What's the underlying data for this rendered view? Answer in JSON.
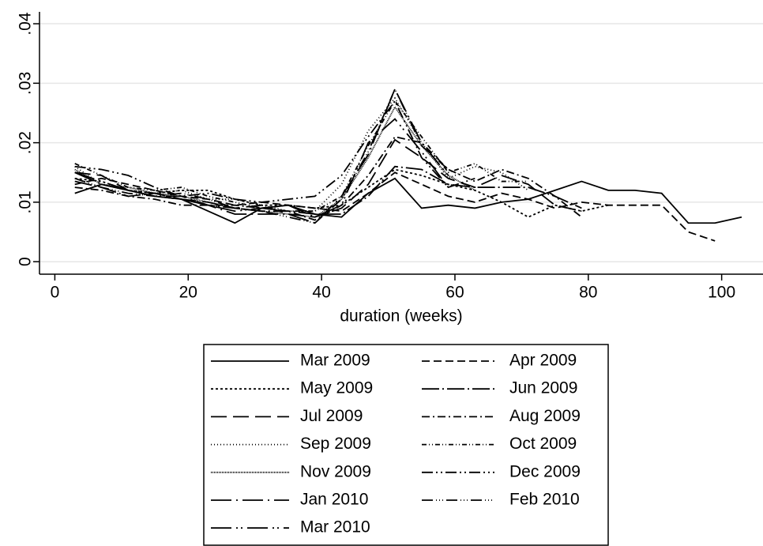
{
  "chart_data": {
    "type": "line",
    "x_label": "duration (weeks)",
    "x": [
      3,
      7,
      11,
      15,
      19,
      23,
      27,
      31,
      35,
      39,
      43,
      47,
      51,
      55,
      59,
      63,
      67,
      71,
      75,
      79,
      83,
      87,
      91,
      95,
      99,
      103
    ],
    "xlim": [
      -2.3,
      106.2
    ],
    "ylim": [
      -0.0021,
      0.042
    ],
    "xticks": [
      0,
      20,
      40,
      60,
      80,
      100
    ],
    "yticks": [
      0,
      {
        "value": 0.01,
        "label": ".01"
      },
      {
        "value": 0.02,
        "label": ".02"
      },
      {
        "value": 0.03,
        "label": ".03"
      },
      {
        "value": 0.04,
        "label": ".04"
      }
    ],
    "grid": true,
    "legend_position": "bottom",
    "series": [
      {
        "name": "Mar 2009",
        "color": "#000000",
        "dash": "none",
        "values": [
          0.0115,
          0.013,
          0.012,
          0.011,
          0.0105,
          0.0085,
          0.0065,
          0.009,
          0.0095,
          0.008,
          0.0075,
          0.0115,
          0.014,
          0.009,
          0.0095,
          0.009,
          0.01,
          0.0105,
          0.012,
          0.0135,
          0.012,
          0.012,
          0.0115,
          0.0065,
          0.0065,
          0.0075
        ]
      },
      {
        "name": "Apr 2009",
        "color": "#000000",
        "dash": "10 5",
        "values": [
          0.013,
          0.014,
          0.013,
          0.012,
          0.011,
          0.0105,
          0.0095,
          0.01,
          0.0095,
          0.009,
          0.0085,
          0.0115,
          0.015,
          0.013,
          0.011,
          0.01,
          0.0115,
          0.0105,
          0.009,
          0.01,
          0.0095,
          0.0095,
          0.0095,
          0.005,
          0.0035,
          null
        ]
      },
      {
        "name": "May 2009",
        "color": "#000000",
        "dash": "3 3",
        "values": [
          0.014,
          0.0135,
          0.012,
          0.0115,
          0.012,
          0.012,
          0.0105,
          0.0095,
          0.0095,
          0.009,
          0.0095,
          0.0125,
          0.0155,
          0.0145,
          0.013,
          0.012,
          0.01,
          0.0075,
          0.0095,
          0.0085,
          0.0095,
          null,
          null,
          null,
          null,
          null
        ]
      },
      {
        "name": "Jun 2009",
        "color": "#000000",
        "dash": "22 4 2 4",
        "values": [
          0.0135,
          0.0125,
          0.011,
          0.0115,
          0.0105,
          0.0095,
          0.009,
          0.0085,
          0.0085,
          0.008,
          0.008,
          0.011,
          0.016,
          0.0155,
          0.013,
          0.0125,
          0.0125,
          0.0125,
          0.011,
          0.009,
          null,
          null,
          null,
          null,
          null,
          null
        ]
      },
      {
        "name": "Jul 2009",
        "color": "#000000",
        "dash": "20 8",
        "values": [
          0.015,
          0.0145,
          0.012,
          0.011,
          0.0105,
          0.01,
          0.009,
          0.0095,
          0.008,
          0.0075,
          0.009,
          0.013,
          0.0205,
          0.0175,
          0.014,
          0.0125,
          0.0145,
          0.013,
          0.0095,
          0.0085,
          null,
          null,
          null,
          null,
          null,
          null
        ]
      },
      {
        "name": "Aug 2009",
        "color": "#000000",
        "dash": "10 4 2 4",
        "values": [
          0.0125,
          0.012,
          0.011,
          0.0105,
          0.0095,
          0.0095,
          0.0095,
          0.009,
          0.0085,
          0.007,
          0.0095,
          0.0145,
          0.021,
          0.02,
          0.0155,
          0.0135,
          0.0155,
          0.014,
          0.011,
          0.0075,
          null,
          null,
          null,
          null,
          null,
          null
        ]
      },
      {
        "name": "Sep 2009",
        "color": "#000000",
        "dash": "1 3",
        "values": [
          0.016,
          0.013,
          0.012,
          0.0115,
          0.012,
          0.0105,
          0.0105,
          0.0095,
          0.0085,
          0.0085,
          0.013,
          0.022,
          0.0275,
          0.02,
          0.014,
          0.016,
          0.015,
          0.012,
          null,
          null,
          null,
          null,
          null,
          null,
          null,
          null
        ]
      },
      {
        "name": "Oct 2009",
        "color": "#000000",
        "dash": "6 3 1 3 1 3",
        "values": [
          0.0165,
          0.0145,
          0.0125,
          0.012,
          0.0125,
          0.011,
          0.01,
          0.009,
          0.0085,
          0.0085,
          0.011,
          0.0195,
          0.027,
          0.021,
          0.015,
          0.0165,
          0.0135,
          0.0135,
          null,
          null,
          null,
          null,
          null,
          null,
          null,
          null
        ]
      },
      {
        "name": "Nov 2009",
        "color": "#000000",
        "dash": "1 1",
        "values": [
          0.0155,
          0.013,
          0.0125,
          0.0115,
          0.011,
          0.01,
          0.009,
          0.0085,
          0.008,
          0.0075,
          0.0105,
          0.0175,
          0.026,
          0.0195,
          0.0145,
          0.012,
          null,
          null,
          null,
          null,
          null,
          null,
          null,
          null,
          null,
          null
        ]
      },
      {
        "name": "Dec 2009",
        "color": "#000000",
        "dash": "14 4 2 4 2 4",
        "values": [
          0.016,
          0.0155,
          0.0145,
          0.0125,
          0.011,
          0.0115,
          0.0105,
          0.01,
          0.0105,
          0.011,
          0.0145,
          0.021,
          0.027,
          0.0175,
          0.0125,
          0.014,
          null,
          null,
          null,
          null,
          null,
          null,
          null,
          null,
          null,
          null
        ]
      },
      {
        "name": "Jan 2010",
        "color": "#000000",
        "dash": "26 6 2 6",
        "values": [
          0.015,
          0.013,
          0.012,
          0.011,
          0.011,
          0.0095,
          0.008,
          0.008,
          0.008,
          0.0065,
          0.011,
          0.018,
          0.029,
          0.02,
          0.0145,
          null,
          null,
          null,
          null,
          null,
          null,
          null,
          null,
          null,
          null,
          null
        ]
      },
      {
        "name": "Feb 2010",
        "color": "#000000",
        "dash": "14 4 1 3 1 3 1 4",
        "values": [
          0.014,
          0.0125,
          0.0115,
          0.011,
          0.0115,
          0.0105,
          0.009,
          0.0085,
          0.0075,
          0.0065,
          0.0105,
          0.0185,
          0.029,
          0.0195,
          0.0155,
          null,
          null,
          null,
          null,
          null,
          null,
          null,
          null,
          null,
          null,
          null
        ]
      },
      {
        "name": "Mar 2010",
        "color": "#000000",
        "dash": "26 6 2 4 2 6",
        "values": [
          0.015,
          0.0135,
          0.012,
          0.0115,
          0.0105,
          0.0095,
          0.0085,
          0.009,
          0.0095,
          0.0075,
          0.0095,
          0.02,
          0.024,
          0.0185,
          0.0125,
          null,
          null,
          null,
          null,
          null,
          null,
          null,
          null,
          null,
          null,
          null
        ]
      }
    ]
  }
}
